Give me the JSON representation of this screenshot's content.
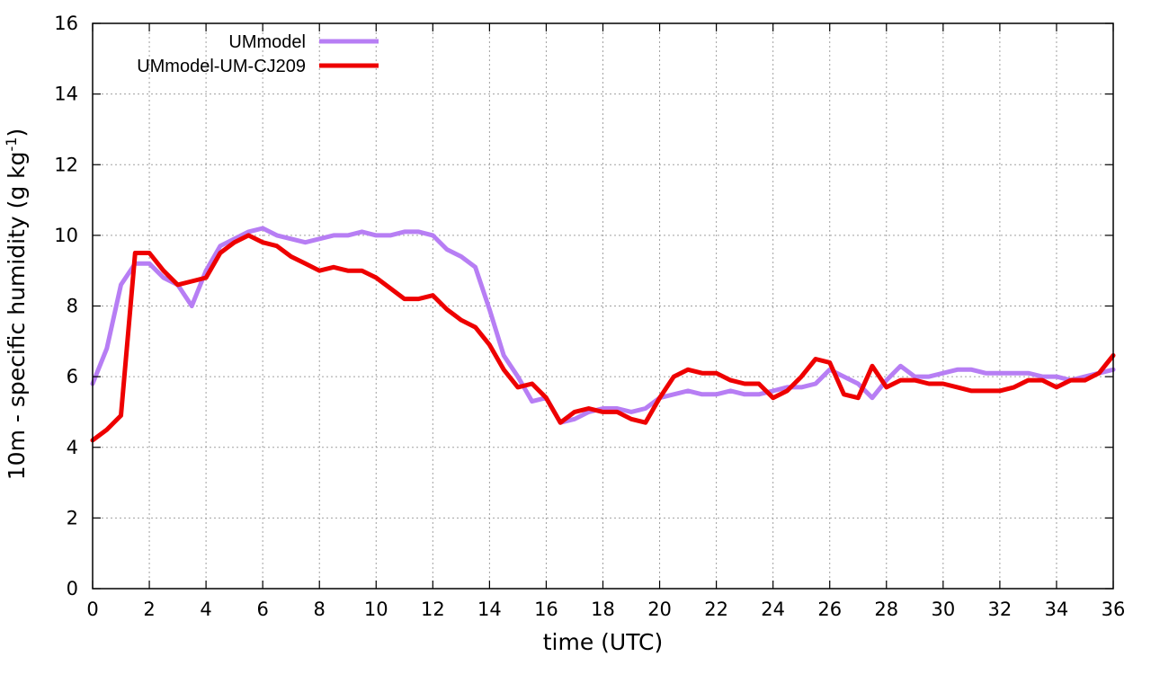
{
  "chart_data": {
    "type": "line",
    "title": "",
    "xlabel": "time (UTC)",
    "ylabel": {
      "main": "10m - specific humidity (g kg",
      "superscript": "-1",
      "close": ")"
    },
    "xlim": [
      0,
      36
    ],
    "ylim": [
      0,
      16
    ],
    "xticks": [
      "0",
      "2",
      "4",
      "6",
      "8",
      "10",
      "12",
      "14",
      "16",
      "18",
      "20",
      "22",
      "24",
      "26",
      "28",
      "30",
      "32",
      "34",
      "36"
    ],
    "yticks": [
      "0",
      "2",
      "4",
      "6",
      "8",
      "10",
      "12",
      "14",
      "16"
    ],
    "grid": true,
    "legend_position": "top-left",
    "series": [
      {
        "name": "UMmodel",
        "color": "#b77ef4",
        "x": [
          0,
          0.5,
          1,
          1.5,
          2,
          2.5,
          3,
          3.5,
          4,
          4.5,
          5,
          5.5,
          6,
          6.5,
          7,
          7.5,
          8,
          8.5,
          9,
          9.5,
          10,
          10.5,
          11,
          11.5,
          12,
          12.5,
          13,
          13.5,
          14,
          14.5,
          15,
          15.5,
          16,
          16.5,
          17,
          17.5,
          18,
          18.5,
          19,
          19.5,
          20,
          20.5,
          21,
          21.5,
          22,
          22.5,
          23,
          23.5,
          24,
          24.5,
          25,
          25.5,
          26,
          26.5,
          27,
          27.5,
          28,
          28.5,
          29,
          29.5,
          30,
          30.5,
          31,
          31.5,
          32,
          32.5,
          33,
          33.5,
          34,
          34.5,
          35,
          35.5,
          36
        ],
        "y": [
          5.8,
          6.8,
          8.6,
          9.2,
          9.2,
          8.8,
          8.6,
          8.0,
          9.0,
          9.7,
          9.9,
          10.1,
          10.2,
          10.0,
          9.9,
          9.8,
          9.9,
          10.0,
          10.0,
          10.1,
          10.0,
          10.0,
          10.1,
          10.1,
          10.0,
          9.6,
          9.4,
          9.1,
          7.9,
          6.6,
          6.0,
          5.3,
          5.4,
          4.7,
          4.8,
          5.0,
          5.1,
          5.1,
          5.0,
          5.1,
          5.4,
          5.5,
          5.6,
          5.5,
          5.5,
          5.6,
          5.5,
          5.5,
          5.6,
          5.7,
          5.7,
          5.8,
          6.2,
          6.0,
          5.8,
          5.4,
          5.9,
          6.3,
          6.0,
          6.0,
          6.1,
          6.2,
          6.2,
          6.1,
          6.1,
          6.1,
          6.1,
          6.0,
          6.0,
          5.9,
          6.0,
          6.1,
          6.2
        ]
      },
      {
        "name": "UMmodel-UM-CJ209",
        "color": "#ee0000",
        "x": [
          0,
          0.5,
          1,
          1.5,
          2,
          2.5,
          3,
          3.5,
          4,
          4.5,
          5,
          5.5,
          6,
          6.5,
          7,
          7.5,
          8,
          8.5,
          9,
          9.5,
          10,
          10.5,
          11,
          11.5,
          12,
          12.5,
          13,
          13.5,
          14,
          14.5,
          15,
          15.5,
          16,
          16.5,
          17,
          17.5,
          18,
          18.5,
          19,
          19.5,
          20,
          20.5,
          21,
          21.5,
          22,
          22.5,
          23,
          23.5,
          24,
          24.5,
          25,
          25.5,
          26,
          26.5,
          27,
          27.5,
          28,
          28.5,
          29,
          29.5,
          30,
          30.5,
          31,
          31.5,
          32,
          32.5,
          33,
          33.5,
          34,
          34.5,
          35,
          35.5,
          36
        ],
        "y": [
          4.2,
          4.5,
          4.9,
          9.5,
          9.5,
          9.0,
          8.6,
          8.7,
          8.8,
          9.5,
          9.8,
          10.0,
          9.8,
          9.7,
          9.4,
          9.2,
          9.0,
          9.1,
          9.0,
          9.0,
          8.8,
          8.5,
          8.2,
          8.2,
          8.3,
          7.9,
          7.6,
          7.4,
          6.9,
          6.2,
          5.7,
          5.8,
          5.4,
          4.7,
          5.0,
          5.1,
          5.0,
          5.0,
          4.8,
          4.7,
          5.4,
          6.0,
          6.2,
          6.1,
          6.1,
          5.9,
          5.8,
          5.8,
          5.4,
          5.6,
          6.0,
          6.5,
          6.4,
          5.5,
          5.4,
          6.3,
          5.7,
          5.9,
          5.9,
          5.8,
          5.8,
          5.7,
          5.6,
          5.6,
          5.6,
          5.7,
          5.9,
          5.9,
          5.7,
          5.9,
          5.9,
          6.1,
          6.6
        ]
      }
    ]
  }
}
